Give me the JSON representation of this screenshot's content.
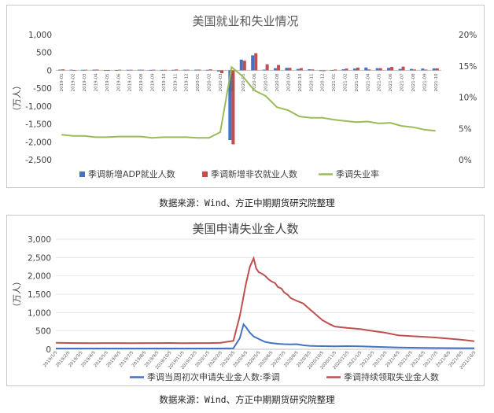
{
  "chart_data": [
    {
      "type": "bar+line",
      "title": "美国就业和失业情况",
      "ylabel": "（万人）",
      "ylim": [
        -2500,
        1000
      ],
      "yticks": [
        "1,000",
        "500",
        "0",
        "-500",
        "-1,000",
        "-1,500",
        "-2,000",
        "-2,500"
      ],
      "y2lim": [
        0,
        20
      ],
      "y2ticks": [
        "20%",
        "15%",
        "10%",
        "5%",
        "0%"
      ],
      "categories": [
        "2019-01",
        "2019-02",
        "2019-03",
        "2019-04",
        "2019-05",
        "2019-06",
        "2019-07",
        "2019-08",
        "2019-09",
        "2019-10",
        "2019-11",
        "2019-12",
        "2020-01",
        "2020-02",
        "2020-03",
        "2020-04",
        "2020-05",
        "2020-06",
        "2020-07",
        "2020-08",
        "2020-09",
        "2020-10",
        "2020-11",
        "2020-12",
        "2021-01",
        "2021-02",
        "2021-03",
        "2021-04",
        "2021-05",
        "2021-06",
        "2021-07",
        "2021-08",
        "2021-09",
        "2021-10"
      ],
      "series": [
        {
          "name": "季调新增ADP就业人数",
          "kind": "bar",
          "color": "#4472c4",
          "values": [
            20,
            18,
            15,
            20,
            5,
            10,
            15,
            18,
            12,
            12,
            15,
            18,
            20,
            15,
            -30,
            -1950,
            300,
            420,
            20,
            60,
            70,
            40,
            30,
            -10,
            10,
            30,
            50,
            80,
            60,
            70,
            40,
            40,
            50,
            55
          ]
        },
        {
          "name": "季调新增非农就业人数",
          "kind": "bar",
          "color": "#c0504d",
          "values": [
            28,
            5,
            18,
            22,
            6,
            18,
            16,
            17,
            18,
            15,
            25,
            18,
            21,
            28,
            -80,
            -2070,
            270,
            480,
            170,
            150,
            70,
            63,
            26,
            -23,
            23,
            50,
            78,
            26,
            61,
            96,
            104,
            24,
            21,
            55
          ]
        },
        {
          "name": "季调失业率",
          "kind": "line",
          "axis": "right",
          "color": "#9bbb59",
          "values": [
            4.0,
            3.8,
            3.8,
            3.6,
            3.6,
            3.7,
            3.7,
            3.7,
            3.5,
            3.6,
            3.6,
            3.6,
            3.5,
            3.5,
            4.4,
            14.8,
            13.3,
            11.1,
            10.2,
            8.4,
            7.9,
            6.9,
            6.7,
            6.7,
            6.4,
            6.2,
            6.0,
            6.1,
            5.8,
            5.9,
            5.4,
            5.2,
            4.8,
            4.6
          ]
        }
      ]
    },
    {
      "type": "line",
      "title": "美国申请失业金人数",
      "ylabel": "（万人）",
      "ylim": [
        0,
        3000
      ],
      "yticks": [
        "3,000",
        "2,500",
        "2,000",
        "1,500",
        "1,000",
        "500",
        "0"
      ],
      "xticks": [
        "2019/1/5",
        "2019/2/5",
        "2019/3/5",
        "2019/4/5",
        "2019/5/5",
        "2019/6/5",
        "2019/7/5",
        "2019/8/5",
        "2019/9/5",
        "2019/10/5",
        "2019/11/5",
        "2019/12/5",
        "2020/1/5",
        "2020/2/5",
        "2020/3/5",
        "2020/4/5",
        "2020/5/5",
        "2020/6/5",
        "2020/7/5",
        "2020/8/5",
        "2020/9/5",
        "2020/10/5",
        "2020/11/5",
        "2020/12/5",
        "2021/1/5",
        "2021/2/5",
        "2021/3/5",
        "2021/4/5",
        "2021/5/5",
        "2021/6/5",
        "2021/7/5",
        "2021/8/5",
        "2021/9/5",
        "2021/10/5"
      ],
      "series": [
        {
          "name": "季调当周初次申请失业金人数:季调",
          "color": "#4472c4",
          "x": [
            0,
            2,
            4,
            6,
            8,
            10,
            11,
            12,
            13,
            14,
            14.5,
            14.8,
            15,
            15.3,
            15.6,
            16,
            16.5,
            17,
            17.5,
            18,
            18.5,
            19,
            19.5,
            20,
            20.5,
            21,
            22,
            23,
            24,
            25,
            26,
            27,
            28,
            29,
            30,
            31,
            32,
            33
          ],
          "values": [
            22,
            21,
            21,
            21,
            22,
            21,
            21,
            22,
            22,
            28,
            300,
            680,
            600,
            450,
            350,
            280,
            200,
            170,
            150,
            140,
            135,
            140,
            110,
            95,
            88,
            85,
            80,
            85,
            80,
            70,
            60,
            50,
            42,
            38,
            35,
            32,
            30,
            29
          ]
        },
        {
          "name": "季调持续领取失业金人数",
          "color": "#c0504d",
          "x": [
            0,
            1,
            2,
            3,
            4,
            5,
            6,
            7,
            8,
            9,
            10,
            11,
            12,
            13,
            14,
            14.5,
            15,
            15.3,
            15.6,
            15.8,
            16,
            16.3,
            16.5,
            16.8,
            17,
            17.3,
            17.5,
            17.8,
            18,
            18.3,
            18.5,
            18.8,
            19,
            19.5,
            20,
            20.5,
            21,
            21.5,
            22,
            23,
            24,
            25,
            26,
            27,
            28,
            29,
            30,
            31,
            32,
            33
          ],
          "values": [
            175,
            172,
            170,
            168,
            170,
            169,
            168,
            170,
            170,
            172,
            168,
            169,
            170,
            175,
            230,
            900,
            1800,
            2250,
            2480,
            2200,
            2100,
            2050,
            2000,
            1900,
            1850,
            1800,
            1700,
            1650,
            1550,
            1480,
            1400,
            1350,
            1320,
            1250,
            1100,
            950,
            800,
            700,
            620,
            580,
            550,
            500,
            450,
            380,
            360,
            340,
            320,
            290,
            260,
            220
          ]
        }
      ]
    }
  ],
  "source_1": "数据来源：Wind、方正中期期货研究院整理",
  "source_2": "数据来源：Wind、方正中期期货研究院整理"
}
